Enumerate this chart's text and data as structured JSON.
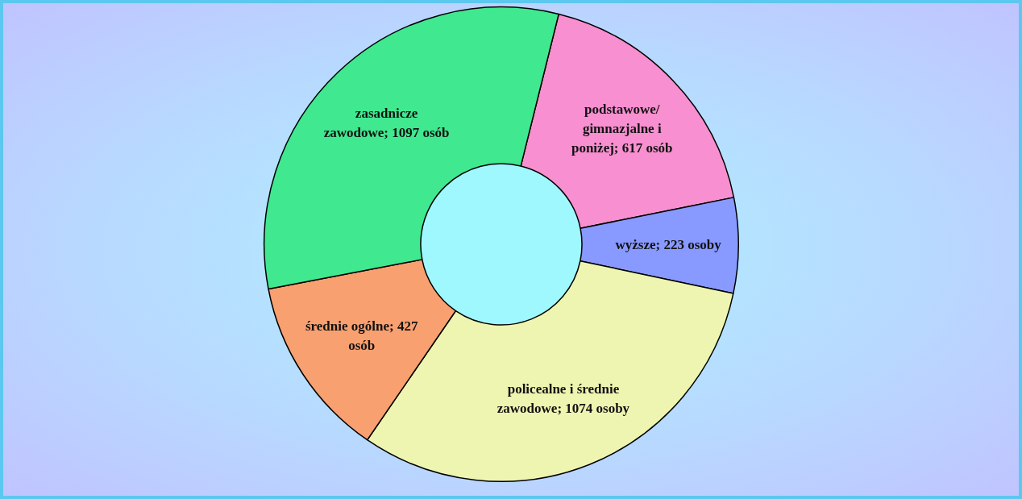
{
  "chart_data": {
    "type": "donut",
    "categories": [
      "podstawowe/ gimnazjalne i poniżej",
      "wyższe",
      "policealne i średnie zawodowe",
      "średnie ogólne",
      "zasadnicze zawodowe"
    ],
    "values": [
      617,
      223,
      1074,
      427,
      1097
    ],
    "value_labels": [
      "617 osób",
      "223 osoby",
      "1074 osoby",
      "427 osób",
      "1097 osób"
    ],
    "colors": [
      "#f78fd0",
      "#8899ff",
      "#eef5b0",
      "#f8a070",
      "#40e890"
    ],
    "legend": false
  }
}
